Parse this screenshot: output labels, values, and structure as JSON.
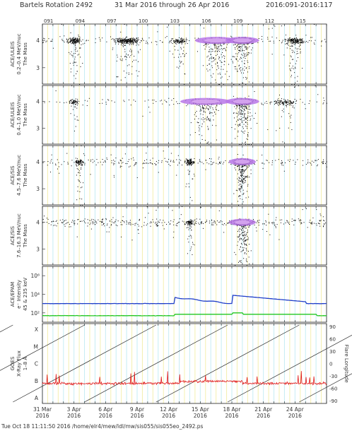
{
  "header": {
    "bartels": "Bartels Rotation 2492",
    "dates": "31 Mar 2016 through 26 Apr 2016",
    "doy_range": "2016:091-2016:117"
  },
  "footer": "Tue Oct 18 11:11:50 2016   /home/elr4/mew/ldl/mw/sis055/sis055eo_2492.ps",
  "chart_data": {
    "type": "scatter",
    "x_start_doy": 91,
    "x_end_doy": 118,
    "colors": {
      "grid_yellow": "#f4f0b0",
      "grid_cyan": "#c6ecf4",
      "dot": "#000000",
      "hot": "#b877e8",
      "hot2": "#d9a8f2",
      "blue": "#1f3ec9",
      "green": "#22c722",
      "red": "#e01818",
      "line": "#222222"
    },
    "doy_ticks": [
      "091",
      "094",
      "097",
      "100",
      "103",
      "106",
      "109",
      "112",
      "115"
    ],
    "date_ticks": [
      {
        "day": "31 Mar",
        "year": "2016"
      },
      {
        "day": "3 Apr",
        "year": "2016"
      },
      {
        "day": "6 Apr",
        "year": "2016"
      },
      {
        "day": "9 Apr",
        "year": "2016"
      },
      {
        "day": "12 Apr",
        "year": "2016"
      },
      {
        "day": "15 Apr",
        "year": "2016"
      },
      {
        "day": "18 Apr",
        "year": "2016"
      },
      {
        "day": "21 Apr",
        "year": "2016"
      },
      {
        "day": "24 Apr",
        "year": "2016"
      }
    ],
    "panels": [
      {
        "kind": "mass",
        "ylabel": [
          "ACE/ULEIS",
          "0.2–0.4 MeV/nuc",
          "The Mass"
        ],
        "yticks": [
          "4",
          "3"
        ],
        "ylim": [
          2.4,
          4.6
        ],
        "clusters": [
          {
            "doy": 94,
            "w": 1.5,
            "n": 170
          },
          {
            "doy": 99,
            "w": 3,
            "n": 300
          },
          {
            "doy": 104,
            "w": 2,
            "n": 120
          },
          {
            "doy": 107.5,
            "w": 2.5,
            "n": 520,
            "hot": true
          },
          {
            "doy": 110,
            "w": 2,
            "n": 620,
            "hot": true
          },
          {
            "doy": 115,
            "w": 2,
            "n": 200
          }
        ],
        "bg": 190
      },
      {
        "kind": "mass",
        "ylabel": [
          "ACE/ULEIS",
          "0.4–1.0 MeV/nuc",
          "The Mass"
        ],
        "yticks": [
          "4",
          "3"
        ],
        "ylim": [
          2.4,
          4.6
        ],
        "clusters": [
          {
            "doy": 94,
            "w": 1,
            "n": 70
          },
          {
            "doy": 106.5,
            "w": 3,
            "n": 440,
            "hot": true
          },
          {
            "doy": 110,
            "w": 2,
            "n": 620,
            "hot": true
          },
          {
            "doy": 114,
            "w": 3,
            "n": 120
          }
        ],
        "bg": 120
      },
      {
        "kind": "mass",
        "ylabel": [
          "ACE/SIS",
          "4.5–7.6 MeV/nuc",
          "The Mass"
        ],
        "yticks": [
          "4",
          "3"
        ],
        "ylim": [
          2.4,
          4.6
        ],
        "clusters": [
          {
            "doy": 94.5,
            "w": 1,
            "n": 90
          },
          {
            "doy": 105,
            "w": 1,
            "n": 110
          },
          {
            "doy": 110,
            "w": 1.6,
            "n": 650,
            "hot": true
          }
        ],
        "bg": 270
      },
      {
        "kind": "mass",
        "ylabel": [
          "ACE/SIS",
          "7.6–16.3 MeV/nuc",
          "The Mass"
        ],
        "yticks": [
          "4",
          "3"
        ],
        "ylim": [
          2.4,
          4.6
        ],
        "clusters": [
          {
            "doy": 105,
            "w": 1,
            "n": 90
          },
          {
            "doy": 110,
            "w": 1.6,
            "n": 520,
            "hot": true
          }
        ],
        "bg": 400
      },
      {
        "kind": "flux",
        "ylabel": [
          "ACE/EPAM",
          "e⁻ Intensity",
          "45 & 235 keV"
        ],
        "yticks": [
          "10⁶",
          "10⁴",
          "10²"
        ],
        "ylim": [
          1,
          7
        ],
        "series": [
          {
            "name": "45 keV",
            "level": 3.0,
            "color": "blue"
          },
          {
            "name": "235 keV",
            "level": 1.7,
            "color": "green"
          }
        ]
      },
      {
        "kind": "xray",
        "ylabel": [
          "GOES",
          "X-Ray Flux",
          "1–8 Å"
        ],
        "yticks": [
          "X",
          "M",
          "C",
          "B",
          "A"
        ],
        "y2label": "Flare Longitude",
        "y2ticks": [
          "90",
          "60",
          "30",
          "0",
          "-30",
          "-60",
          "-90"
        ]
      }
    ]
  }
}
